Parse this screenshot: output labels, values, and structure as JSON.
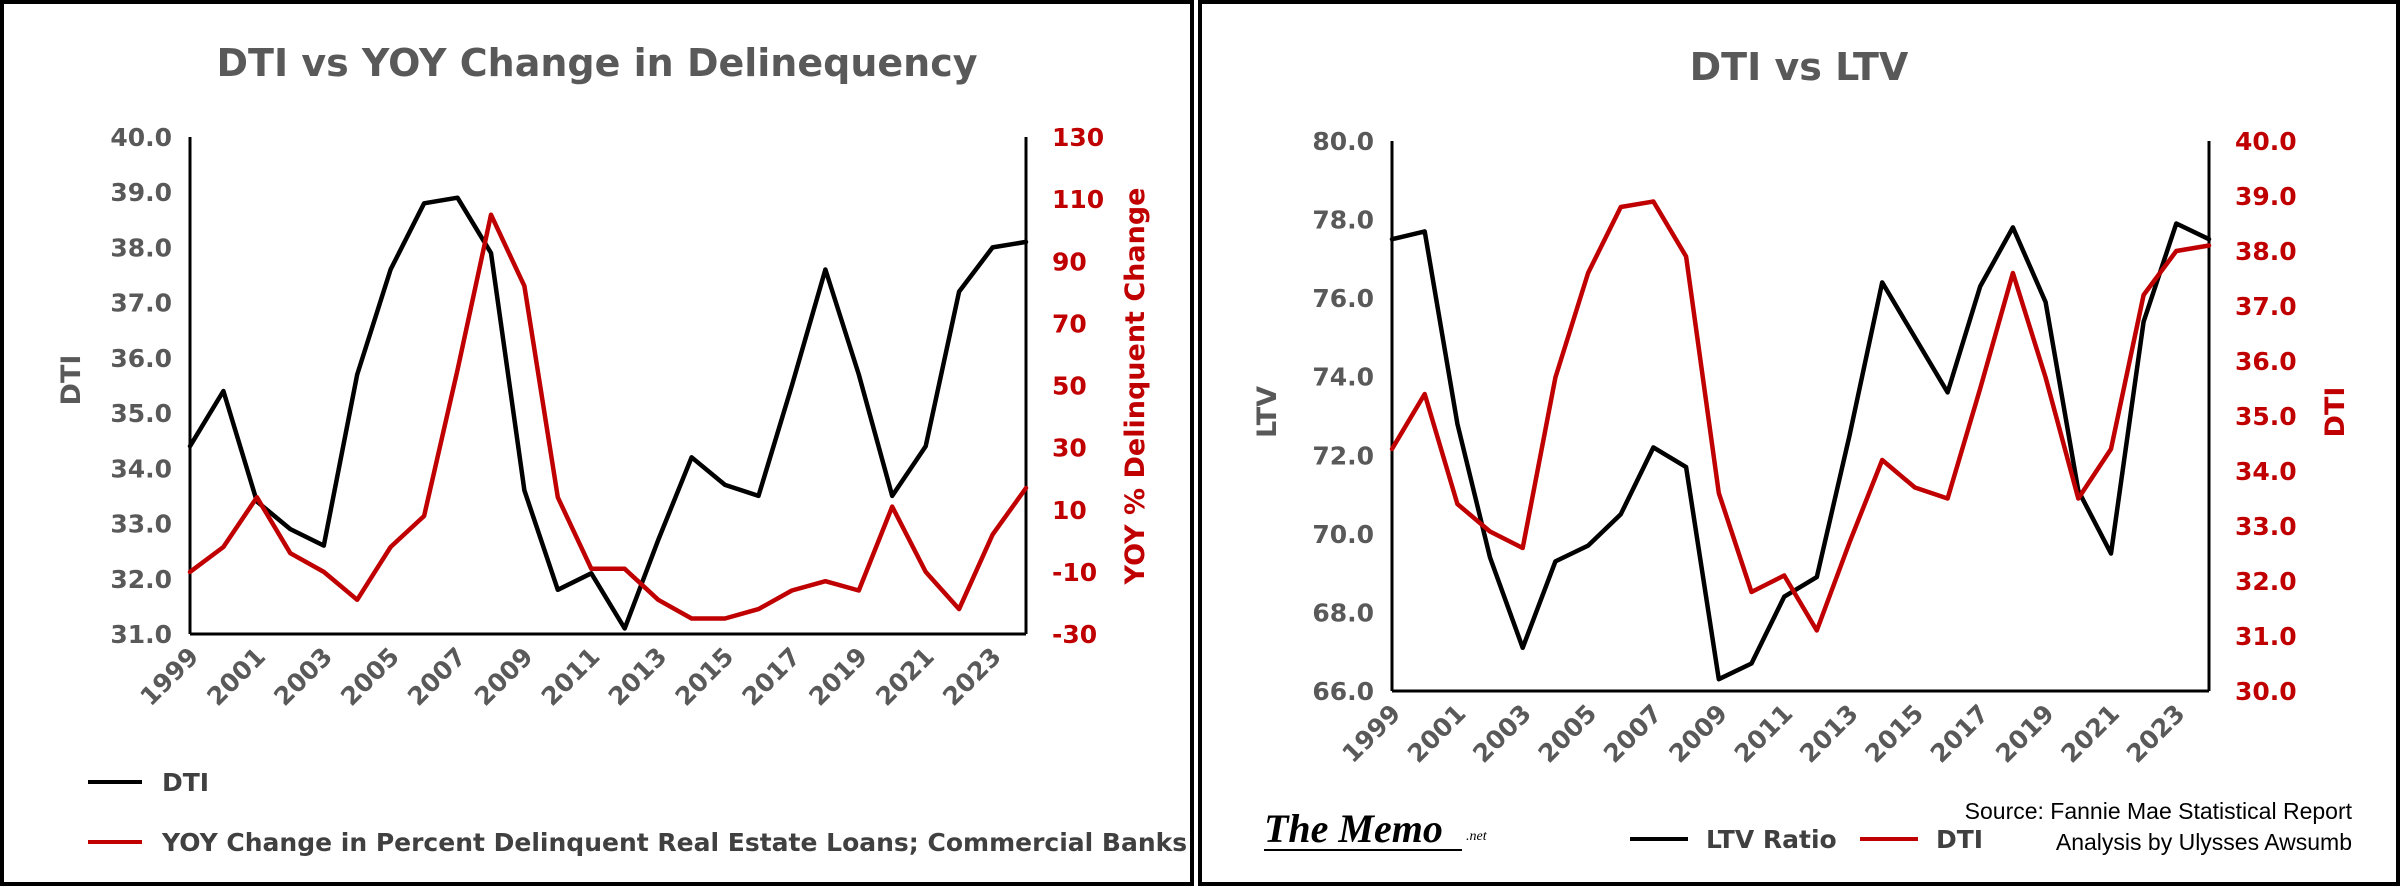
{
  "chart_data": [
    {
      "type": "line",
      "title": "DTI vs YOY Change in Delinequency",
      "x": [
        1999,
        2000,
        2001,
        2002,
        2003,
        2004,
        2005,
        2006,
        2007,
        2008,
        2009,
        2010,
        2011,
        2012,
        2013,
        2014,
        2015,
        2016,
        2017,
        2018,
        2019,
        2020,
        2021,
        2022,
        2023,
        2024
      ],
      "x_tick_labels": [
        "1999",
        "2001",
        "2003",
        "2005",
        "2007",
        "2009",
        "2011",
        "2013",
        "2015",
        "2017",
        "2019",
        "2021",
        "2023"
      ],
      "ylabel": "DTI",
      "ylim": [
        31.0,
        40.0
      ],
      "y_ticks": [
        "31.0",
        "32.0",
        "33.0",
        "34.0",
        "35.0",
        "36.0",
        "37.0",
        "38.0",
        "39.0",
        "40.0"
      ],
      "y2label": "YOY % Delinquent Change",
      "y2lim": [
        -30,
        130
      ],
      "y2_ticks": [
        "-30",
        "-10",
        "10",
        "30",
        "50",
        "70",
        "90",
        "110",
        "130"
      ],
      "grid": false,
      "legend_position": "bottom",
      "series": [
        {
          "name": "DTI",
          "axis": "left",
          "color": "#000000",
          "values": [
            34.4,
            35.4,
            33.4,
            32.9,
            32.6,
            35.7,
            37.6,
            38.8,
            38.9,
            37.9,
            33.6,
            31.8,
            32.1,
            31.1,
            32.7,
            34.2,
            33.7,
            33.5,
            35.5,
            37.6,
            35.7,
            33.5,
            34.4,
            37.2,
            38.0,
            38.1
          ]
        },
        {
          "name": "YOY Change in Percent Delinquent Real Estate Loans; Commercial Banks",
          "axis": "right",
          "color": "#c00000",
          "values": [
            -10,
            -2,
            14,
            -4,
            -10,
            -19,
            -2,
            8,
            55,
            105,
            82,
            14,
            -9,
            -9,
            -19,
            -25,
            -25,
            -22,
            -16,
            -13,
            -16,
            11,
            -10,
            -22,
            2,
            17
          ]
        }
      ]
    },
    {
      "type": "line",
      "title": "DTI vs LTV",
      "x": [
        1999,
        2000,
        2001,
        2002,
        2003,
        2004,
        2005,
        2006,
        2007,
        2008,
        2009,
        2010,
        2011,
        2012,
        2013,
        2014,
        2015,
        2016,
        2017,
        2018,
        2019,
        2020,
        2021,
        2022,
        2023,
        2024
      ],
      "x_tick_labels": [
        "1999",
        "2001",
        "2003",
        "2005",
        "2007",
        "2009",
        "2011",
        "2013",
        "2015",
        "2017",
        "2019",
        "2021",
        "2023"
      ],
      "ylabel": "LTV",
      "ylim": [
        66.0,
        80.0
      ],
      "y_ticks": [
        "66.0",
        "68.0",
        "70.0",
        "72.0",
        "74.0",
        "76.0",
        "78.0",
        "80.0"
      ],
      "y2label": "DTI",
      "y2lim": [
        30.0,
        40.0
      ],
      "y2_ticks": [
        "30.0",
        "31.0",
        "32.0",
        "33.0",
        "34.0",
        "35.0",
        "36.0",
        "37.0",
        "38.0",
        "39.0",
        "40.0"
      ],
      "grid": false,
      "legend_position": "bottom",
      "series": [
        {
          "name": "LTV Ratio",
          "axis": "left",
          "color": "#000000",
          "values": [
            77.5,
            77.7,
            72.8,
            69.4,
            67.1,
            69.3,
            69.7,
            70.5,
            72.2,
            71.7,
            66.3,
            66.7,
            68.4,
            68.9,
            72.5,
            76.4,
            75.0,
            73.6,
            76.3,
            77.8,
            75.9,
            71.1,
            69.5,
            75.4,
            77.9,
            77.5
          ]
        },
        {
          "name": "DTI",
          "axis": "right",
          "color": "#c00000",
          "values": [
            34.4,
            35.4,
            33.4,
            32.9,
            32.6,
            35.7,
            37.6,
            38.8,
            38.9,
            37.9,
            33.6,
            31.8,
            32.1,
            31.1,
            32.7,
            34.2,
            33.7,
            33.5,
            35.5,
            37.6,
            35.7,
            33.5,
            34.4,
            37.2,
            38.0,
            38.1
          ]
        }
      ]
    }
  ],
  "branding": {
    "logo": "The Memo",
    "logo_suffix": ".net"
  },
  "source_lines": [
    "Source: Fannie Mae Statistical Report",
    "Analysis by Ulysses Awsumb"
  ]
}
